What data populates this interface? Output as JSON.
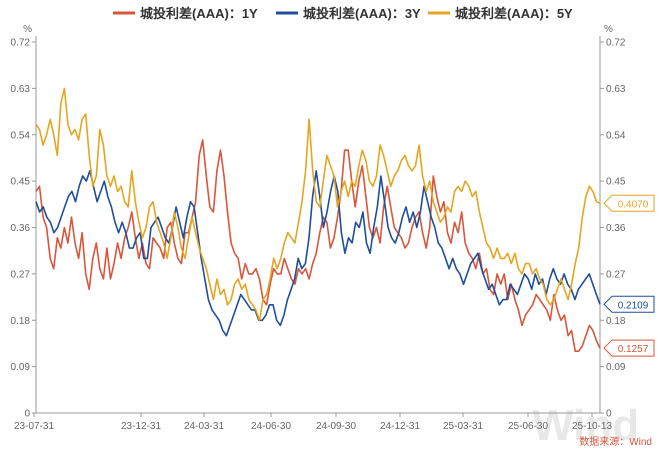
{
  "chart_data": {
    "type": "line",
    "unit_left": "%",
    "unit_right": "%",
    "ylim": [
      0,
      0.72
    ],
    "y_ticks": [
      "0",
      "0.09",
      "0.18",
      "0.27",
      "0.36",
      "0.45",
      "0.54",
      "0.63",
      "0.72"
    ],
    "x_ticks": [
      "23-07-31",
      "23-12-31",
      "24-03-31",
      "24-06-30",
      "24-09-30",
      "24-12-31",
      "25-03-31",
      "25-06-30",
      "25-10-13"
    ],
    "series": [
      {
        "name": "城投利差(AAA)：1Y",
        "color": "#d9553b",
        "last_label": "0.1257",
        "values": [
          0.43,
          0.44,
          0.38,
          0.36,
          0.3,
          0.28,
          0.34,
          0.32,
          0.36,
          0.33,
          0.38,
          0.33,
          0.3,
          0.35,
          0.27,
          0.24,
          0.3,
          0.33,
          0.28,
          0.26,
          0.32,
          0.26,
          0.29,
          0.33,
          0.3,
          0.34,
          0.36,
          0.39,
          0.34,
          0.3,
          0.33,
          0.29,
          0.28,
          0.34,
          0.33,
          0.32,
          0.3,
          0.36,
          0.37,
          0.33,
          0.3,
          0.29,
          0.35,
          0.35,
          0.38,
          0.41,
          0.5,
          0.53,
          0.46,
          0.4,
          0.39,
          0.47,
          0.51,
          0.46,
          0.39,
          0.33,
          0.31,
          0.3,
          0.26,
          0.29,
          0.27,
          0.27,
          0.28,
          0.26,
          0.22,
          0.21,
          0.25,
          0.28,
          0.27,
          0.27,
          0.3,
          0.28,
          0.26,
          0.25,
          0.28,
          0.27,
          0.28,
          0.26,
          0.29,
          0.31,
          0.35,
          0.38,
          0.37,
          0.32,
          0.34,
          0.38,
          0.43,
          0.51,
          0.51,
          0.45,
          0.4,
          0.45,
          0.48,
          0.42,
          0.36,
          0.34,
          0.36,
          0.33,
          0.4,
          0.44,
          0.4,
          0.36,
          0.35,
          0.34,
          0.32,
          0.33,
          0.36,
          0.38,
          0.39,
          0.35,
          0.32,
          0.36,
          0.46,
          0.42,
          0.39,
          0.41,
          0.35,
          0.33,
          0.37,
          0.35,
          0.39,
          0.33,
          0.31,
          0.3,
          0.28,
          0.31,
          0.27,
          0.28,
          0.24,
          0.23,
          0.27,
          0.25,
          0.27,
          0.22,
          0.25,
          0.22,
          0.2,
          0.17,
          0.19,
          0.2,
          0.21,
          0.23,
          0.22,
          0.21,
          0.2,
          0.18,
          0.23,
          0.2,
          0.18,
          0.19,
          0.15,
          0.16,
          0.12,
          0.12,
          0.13,
          0.15,
          0.17,
          0.16,
          0.14,
          0.126
        ]
      },
      {
        "name": "城投利差(AAA)：3Y",
        "color": "#1f4e9c",
        "last_label": "0.2109",
        "values": [
          0.41,
          0.39,
          0.4,
          0.38,
          0.37,
          0.35,
          0.36,
          0.38,
          0.4,
          0.42,
          0.43,
          0.41,
          0.44,
          0.46,
          0.45,
          0.47,
          0.44,
          0.41,
          0.43,
          0.45,
          0.42,
          0.4,
          0.37,
          0.35,
          0.37,
          0.35,
          0.32,
          0.32,
          0.34,
          0.35,
          0.3,
          0.3,
          0.36,
          0.37,
          0.38,
          0.36,
          0.34,
          0.33,
          0.36,
          0.4,
          0.37,
          0.34,
          0.38,
          0.41,
          0.4,
          0.35,
          0.3,
          0.26,
          0.22,
          0.2,
          0.19,
          0.18,
          0.16,
          0.15,
          0.17,
          0.19,
          0.21,
          0.23,
          0.22,
          0.21,
          0.2,
          0.2,
          0.18,
          0.18,
          0.19,
          0.21,
          0.21,
          0.18,
          0.17,
          0.19,
          0.22,
          0.24,
          0.26,
          0.3,
          0.28,
          0.29,
          0.34,
          0.42,
          0.47,
          0.42,
          0.36,
          0.39,
          0.43,
          0.46,
          0.43,
          0.35,
          0.31,
          0.34,
          0.33,
          0.37,
          0.36,
          0.39,
          0.33,
          0.31,
          0.36,
          0.4,
          0.46,
          0.41,
          0.36,
          0.34,
          0.33,
          0.35,
          0.38,
          0.4,
          0.37,
          0.39,
          0.36,
          0.39,
          0.44,
          0.41,
          0.38,
          0.36,
          0.33,
          0.32,
          0.3,
          0.28,
          0.3,
          0.28,
          0.27,
          0.25,
          0.27,
          0.29,
          0.3,
          0.31,
          0.28,
          0.26,
          0.24,
          0.25,
          0.23,
          0.21,
          0.22,
          0.22,
          0.25,
          0.24,
          0.23,
          0.25,
          0.27,
          0.26,
          0.24,
          0.27,
          0.25,
          0.26,
          0.23,
          0.26,
          0.28,
          0.26,
          0.25,
          0.27,
          0.25,
          0.24,
          0.22,
          0.24,
          0.25,
          0.26,
          0.27,
          0.25,
          0.23,
          0.211
        ]
      },
      {
        "name": "城投利差(AAA)：5Y",
        "color": "#e6a520",
        "last_label": "0.4070",
        "values": [
          0.56,
          0.55,
          0.52,
          0.54,
          0.57,
          0.54,
          0.5,
          0.6,
          0.63,
          0.56,
          0.54,
          0.55,
          0.53,
          0.57,
          0.58,
          0.5,
          0.44,
          0.46,
          0.55,
          0.52,
          0.46,
          0.44,
          0.46,
          0.43,
          0.44,
          0.41,
          0.4,
          0.47,
          0.41,
          0.37,
          0.34,
          0.36,
          0.4,
          0.41,
          0.37,
          0.35,
          0.33,
          0.3,
          0.34,
          0.39,
          0.36,
          0.32,
          0.3,
          0.34,
          0.38,
          0.35,
          0.32,
          0.3,
          0.28,
          0.25,
          0.22,
          0.26,
          0.23,
          0.24,
          0.21,
          0.22,
          0.25,
          0.26,
          0.24,
          0.25,
          0.22,
          0.21,
          0.2,
          0.18,
          0.22,
          0.23,
          0.26,
          0.3,
          0.28,
          0.3,
          0.33,
          0.35,
          0.34,
          0.33,
          0.37,
          0.41,
          0.47,
          0.57,
          0.47,
          0.41,
          0.4,
          0.45,
          0.5,
          0.48,
          0.46,
          0.4,
          0.43,
          0.45,
          0.42,
          0.45,
          0.44,
          0.48,
          0.51,
          0.49,
          0.45,
          0.44,
          0.46,
          0.52,
          0.5,
          0.47,
          0.44,
          0.46,
          0.47,
          0.49,
          0.5,
          0.48,
          0.47,
          0.48,
          0.52,
          0.46,
          0.43,
          0.45,
          0.41,
          0.39,
          0.37,
          0.38,
          0.4,
          0.39,
          0.43,
          0.44,
          0.43,
          0.45,
          0.44,
          0.42,
          0.43,
          0.39,
          0.36,
          0.33,
          0.32,
          0.3,
          0.32,
          0.3,
          0.3,
          0.31,
          0.29,
          0.31,
          0.28,
          0.27,
          0.29,
          0.29,
          0.27,
          0.28,
          0.26,
          0.25,
          0.22,
          0.21,
          0.22,
          0.24,
          0.26,
          0.24,
          0.22,
          0.25,
          0.29,
          0.32,
          0.38,
          0.42,
          0.44,
          0.43,
          0.41,
          0.407
        ]
      }
    ]
  },
  "source": "数据来源：Wind",
  "watermark": "Wind"
}
